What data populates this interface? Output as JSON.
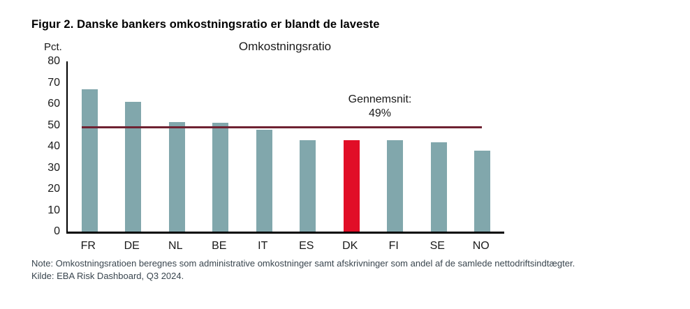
{
  "figure": {
    "title": "Figur 2. Danske bankers omkostningsratio er blandt de laveste",
    "note_line1": "Note: Omkostningsratioen beregnes som administrative omkostninger samt afskrivninger som andel af de samlede nettodriftsindtægter.",
    "note_line2": "Kilde: EBA Risk Dashboard, Q3 2024."
  },
  "chart_data": {
    "type": "bar",
    "title": "Omkostningsratio",
    "ylabel": "Pct.",
    "xlabel": "",
    "categories": [
      "FR",
      "DE",
      "NL",
      "BE",
      "IT",
      "ES",
      "DK",
      "FI",
      "SE",
      "NO"
    ],
    "values": [
      67,
      61,
      51.5,
      51,
      48,
      43,
      43,
      43,
      42,
      38
    ],
    "highlight_category": "DK",
    "ylim": [
      0,
      80
    ],
    "yticks": [
      0,
      10,
      20,
      30,
      40,
      50,
      60,
      70,
      80
    ],
    "grid": false,
    "legend": false,
    "average_line": {
      "value": 49,
      "label_line1": "Gennemsnit:",
      "label_line2": "49%"
    },
    "colors": {
      "bar": "#81A7AC",
      "highlight_bar": "#E10E27",
      "average_line": "#6F2232",
      "axis": "#000000",
      "title_text": "#000000",
      "note_text": "#39454E"
    }
  }
}
